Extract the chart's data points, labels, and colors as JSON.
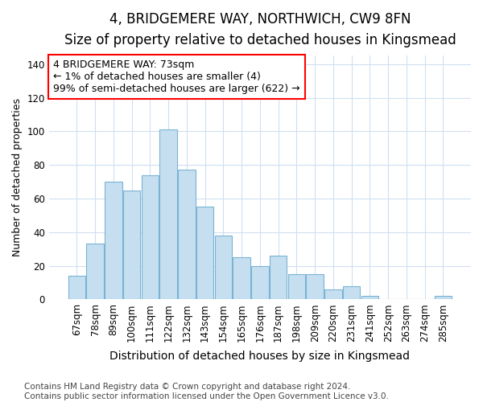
{
  "title": "4, BRIDGEMERE WAY, NORTHWICH, CW9 8FN",
  "subtitle": "Size of property relative to detached houses in Kingsmead",
  "xlabel": "Distribution of detached houses by size in Kingsmead",
  "ylabel": "Number of detached properties",
  "categories": [
    "67sqm",
    "78sqm",
    "89sqm",
    "100sqm",
    "111sqm",
    "122sqm",
    "132sqm",
    "143sqm",
    "154sqm",
    "165sqm",
    "176sqm",
    "187sqm",
    "198sqm",
    "209sqm",
    "220sqm",
    "231sqm",
    "241sqm",
    "252sqm",
    "263sqm",
    "274sqm",
    "285sqm"
  ],
  "values": [
    14,
    33,
    70,
    65,
    74,
    101,
    77,
    55,
    38,
    25,
    20,
    26,
    15,
    15,
    6,
    8,
    2,
    0,
    0,
    0,
    2
  ],
  "bar_color": "#c5dff0",
  "bar_edge_color": "#7ab3d4",
  "ylim": [
    0,
    145
  ],
  "yticks": [
    0,
    20,
    40,
    60,
    80,
    100,
    120,
    140
  ],
  "annotation_text": "4 BRIDGEMERE WAY: 73sqm\n← 1% of detached houses are smaller (4)\n99% of semi-detached houses are larger (622) →",
  "footer_line1": "Contains HM Land Registry data © Crown copyright and database right 2024.",
  "footer_line2": "Contains public sector information licensed under the Open Government Licence v3.0.",
  "background_color": "#ffffff",
  "plot_bg_color": "#ffffff",
  "grid_color": "#d0dff0",
  "title_fontsize": 12,
  "subtitle_fontsize": 10,
  "xlabel_fontsize": 10,
  "ylabel_fontsize": 9,
  "tick_fontsize": 8.5,
  "footer_fontsize": 7.5,
  "annotation_fontsize": 9
}
